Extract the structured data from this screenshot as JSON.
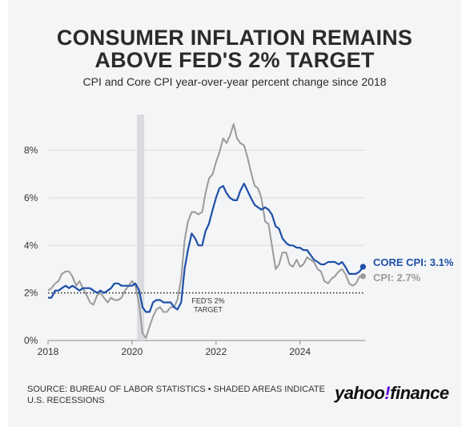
{
  "header": {
    "title_line1": "CONSUMER INFLATION REMAINS",
    "title_line2": "ABOVE FED'S 2% TARGET",
    "subtitle": "CPI and Core CPI year-over-year percent change since 2018"
  },
  "footer": {
    "source": "SOURCE: BUREAU OF LABOR STATISTICS • SHADED AREAS INDICATE U.S. RECESSIONS",
    "logo_left": "yahoo",
    "logo_bang": "!",
    "logo_right": "finance"
  },
  "colors": {
    "core": "#1d4fa8",
    "cpi": "#9a9a9a",
    "recession": "#d9dbdf",
    "grid": "#dcdcdc"
  },
  "chart_data": {
    "type": "line",
    "title": "CONSUMER INFLATION REMAINS ABOVE FED'S 2% TARGET",
    "subtitle": "CPI and Core CPI year-over-year percent change since 2018",
    "xlabel": "",
    "ylabel": "",
    "xlim": [
      2018.0,
      2025.55
    ],
    "ylim": [
      0,
      9.5
    ],
    "x_ticks": [
      2018,
      2020,
      2022,
      2024
    ],
    "x_tick_labels": [
      "2018",
      "2020",
      "2022",
      "2024"
    ],
    "y_ticks": [
      0,
      2,
      4,
      6,
      8
    ],
    "y_tick_labels": [
      "0%",
      "2%",
      "4%",
      "6%",
      "8%"
    ],
    "grid": true,
    "recession_band": [
      2020.12,
      2020.29
    ],
    "reference_line": {
      "y": 2,
      "label_line1": "FED'S 2%",
      "label_line2": "TARGET"
    },
    "end_labels": {
      "core": "CORE CPI: 3.1%",
      "cpi": "CPI: 2.7%"
    },
    "series": [
      {
        "key": "core",
        "points": [
          [
            2018.0,
            1.8
          ],
          [
            2018.08,
            1.8
          ],
          [
            2018.17,
            2.1
          ],
          [
            2018.25,
            2.1
          ],
          [
            2018.33,
            2.2
          ],
          [
            2018.42,
            2.3
          ],
          [
            2018.5,
            2.2
          ],
          [
            2018.58,
            2.3
          ],
          [
            2018.67,
            2.2
          ],
          [
            2018.75,
            2.1
          ],
          [
            2018.83,
            2.2
          ],
          [
            2018.92,
            2.2
          ],
          [
            2019.0,
            2.2
          ],
          [
            2019.08,
            2.1
          ],
          [
            2019.17,
            2.0
          ],
          [
            2019.25,
            2.1
          ],
          [
            2019.33,
            2.0
          ],
          [
            2019.42,
            2.1
          ],
          [
            2019.5,
            2.2
          ],
          [
            2019.58,
            2.4
          ],
          [
            2019.67,
            2.4
          ],
          [
            2019.75,
            2.3
          ],
          [
            2019.83,
            2.3
          ],
          [
            2019.92,
            2.3
          ],
          [
            2020.0,
            2.3
          ],
          [
            2020.08,
            2.4
          ],
          [
            2020.17,
            2.1
          ],
          [
            2020.25,
            1.4
          ],
          [
            2020.33,
            1.2
          ],
          [
            2020.42,
            1.2
          ],
          [
            2020.5,
            1.6
          ],
          [
            2020.58,
            1.7
          ],
          [
            2020.67,
            1.7
          ],
          [
            2020.75,
            1.6
          ],
          [
            2020.83,
            1.6
          ],
          [
            2020.92,
            1.6
          ],
          [
            2021.0,
            1.4
          ],
          [
            2021.08,
            1.3
          ],
          [
            2021.17,
            1.6
          ],
          [
            2021.25,
            3.0
          ],
          [
            2021.33,
            3.8
          ],
          [
            2021.42,
            4.5
          ],
          [
            2021.5,
            4.3
          ],
          [
            2021.58,
            4.0
          ],
          [
            2021.67,
            4.0
          ],
          [
            2021.75,
            4.6
          ],
          [
            2021.83,
            4.9
          ],
          [
            2021.92,
            5.5
          ],
          [
            2022.0,
            6.0
          ],
          [
            2022.08,
            6.4
          ],
          [
            2022.17,
            6.5
          ],
          [
            2022.25,
            6.2
          ],
          [
            2022.33,
            6.0
          ],
          [
            2022.42,
            5.9
          ],
          [
            2022.5,
            5.9
          ],
          [
            2022.58,
            6.3
          ],
          [
            2022.67,
            6.6
          ],
          [
            2022.75,
            6.3
          ],
          [
            2022.83,
            6.0
          ],
          [
            2022.92,
            5.7
          ],
          [
            2023.0,
            5.6
          ],
          [
            2023.08,
            5.5
          ],
          [
            2023.17,
            5.6
          ],
          [
            2023.25,
            5.5
          ],
          [
            2023.33,
            5.3
          ],
          [
            2023.42,
            4.8
          ],
          [
            2023.5,
            4.7
          ],
          [
            2023.58,
            4.3
          ],
          [
            2023.67,
            4.1
          ],
          [
            2023.75,
            4.0
          ],
          [
            2023.83,
            4.0
          ],
          [
            2023.92,
            3.9
          ],
          [
            2024.0,
            3.9
          ],
          [
            2024.08,
            3.8
          ],
          [
            2024.17,
            3.8
          ],
          [
            2024.25,
            3.6
          ],
          [
            2024.33,
            3.4
          ],
          [
            2024.42,
            3.3
          ],
          [
            2024.5,
            3.2
          ],
          [
            2024.58,
            3.2
          ],
          [
            2024.67,
            3.3
          ],
          [
            2024.75,
            3.3
          ],
          [
            2024.83,
            3.3
          ],
          [
            2024.92,
            3.2
          ],
          [
            2025.0,
            3.3
          ],
          [
            2025.08,
            3.1
          ],
          [
            2025.17,
            2.8
          ],
          [
            2025.25,
            2.8
          ],
          [
            2025.33,
            2.8
          ],
          [
            2025.42,
            2.9
          ],
          [
            2025.5,
            3.1
          ]
        ]
      },
      {
        "key": "cpi",
        "points": [
          [
            2018.0,
            2.1
          ],
          [
            2018.08,
            2.2
          ],
          [
            2018.17,
            2.4
          ],
          [
            2018.25,
            2.5
          ],
          [
            2018.33,
            2.8
          ],
          [
            2018.42,
            2.9
          ],
          [
            2018.5,
            2.9
          ],
          [
            2018.58,
            2.7
          ],
          [
            2018.67,
            2.3
          ],
          [
            2018.75,
            2.5
          ],
          [
            2018.83,
            2.2
          ],
          [
            2018.92,
            1.9
          ],
          [
            2019.0,
            1.6
          ],
          [
            2019.08,
            1.5
          ],
          [
            2019.17,
            1.9
          ],
          [
            2019.25,
            2.0
          ],
          [
            2019.33,
            1.8
          ],
          [
            2019.42,
            1.6
          ],
          [
            2019.5,
            1.8
          ],
          [
            2019.58,
            1.7
          ],
          [
            2019.67,
            1.7
          ],
          [
            2019.75,
            1.8
          ],
          [
            2019.83,
            2.1
          ],
          [
            2019.92,
            2.3
          ],
          [
            2020.0,
            2.5
          ],
          [
            2020.08,
            2.3
          ],
          [
            2020.17,
            1.5
          ],
          [
            2020.25,
            0.3
          ],
          [
            2020.33,
            0.1
          ],
          [
            2020.42,
            0.6
          ],
          [
            2020.5,
            1.0
          ],
          [
            2020.58,
            1.3
          ],
          [
            2020.67,
            1.4
          ],
          [
            2020.75,
            1.2
          ],
          [
            2020.83,
            1.2
          ],
          [
            2020.92,
            1.4
          ],
          [
            2021.0,
            1.4
          ],
          [
            2021.08,
            1.7
          ],
          [
            2021.17,
            2.6
          ],
          [
            2021.25,
            4.2
          ],
          [
            2021.33,
            5.0
          ],
          [
            2021.42,
            5.4
          ],
          [
            2021.5,
            5.4
          ],
          [
            2021.58,
            5.3
          ],
          [
            2021.67,
            5.4
          ],
          [
            2021.75,
            6.2
          ],
          [
            2021.83,
            6.8
          ],
          [
            2021.92,
            7.0
          ],
          [
            2022.0,
            7.5
          ],
          [
            2022.08,
            7.9
          ],
          [
            2022.17,
            8.5
          ],
          [
            2022.25,
            8.3
          ],
          [
            2022.33,
            8.6
          ],
          [
            2022.42,
            9.1
          ],
          [
            2022.5,
            8.5
          ],
          [
            2022.58,
            8.3
          ],
          [
            2022.67,
            8.2
          ],
          [
            2022.75,
            7.7
          ],
          [
            2022.83,
            7.1
          ],
          [
            2022.92,
            6.5
          ],
          [
            2023.0,
            6.4
          ],
          [
            2023.08,
            6.0
          ],
          [
            2023.17,
            5.0
          ],
          [
            2023.25,
            4.9
          ],
          [
            2023.33,
            4.0
          ],
          [
            2023.42,
            3.0
          ],
          [
            2023.5,
            3.2
          ],
          [
            2023.58,
            3.7
          ],
          [
            2023.67,
            3.7
          ],
          [
            2023.75,
            3.2
          ],
          [
            2023.83,
            3.1
          ],
          [
            2023.92,
            3.4
          ],
          [
            2024.0,
            3.1
          ],
          [
            2024.08,
            3.2
          ],
          [
            2024.17,
            3.5
          ],
          [
            2024.25,
            3.4
          ],
          [
            2024.33,
            3.3
          ],
          [
            2024.42,
            3.0
          ],
          [
            2024.5,
            2.9
          ],
          [
            2024.58,
            2.5
          ],
          [
            2024.67,
            2.4
          ],
          [
            2024.75,
            2.6
          ],
          [
            2024.83,
            2.7
          ],
          [
            2024.92,
            2.9
          ],
          [
            2025.0,
            3.0
          ],
          [
            2025.08,
            2.8
          ],
          [
            2025.17,
            2.4
          ],
          [
            2025.25,
            2.3
          ],
          [
            2025.33,
            2.4
          ],
          [
            2025.42,
            2.7
          ],
          [
            2025.5,
            2.7
          ]
        ]
      }
    ]
  }
}
